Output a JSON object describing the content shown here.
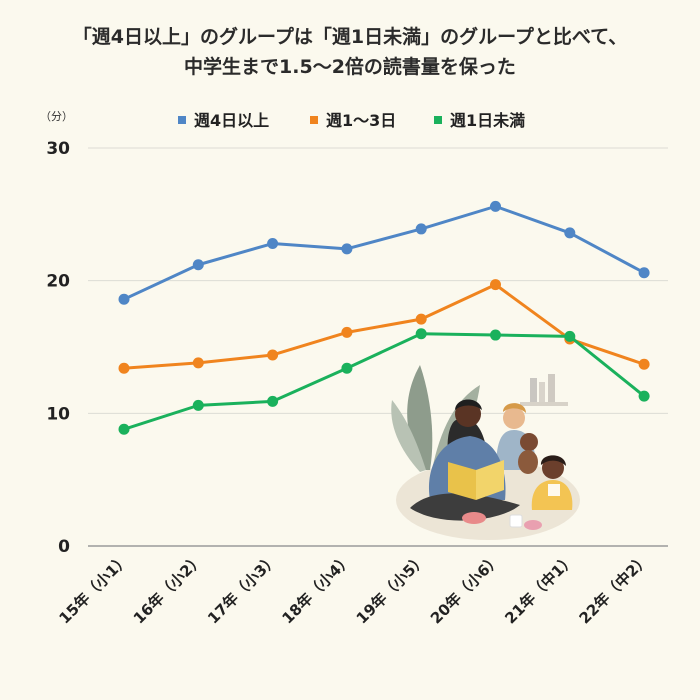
{
  "header": {
    "title_line1": "「週4日以上」のグループは「週1日未満」のグループと比べて、",
    "title_line2": "中学生まで1.5〜2倍の読書量を保った"
  },
  "chart_data": {
    "type": "line",
    "title": "「週4日以上」のグループは「週1日未満」のグループと比べて、中学生まで1.5〜2倍の読書量を保った",
    "unit_label": "（分）",
    "categories": [
      "15年（小1）",
      "16年（小2）",
      "17年（小3）",
      "18年（小4）",
      "19年（小5）",
      "20年（小6）",
      "21年（中1）",
      "22年（中2）"
    ],
    "yticks": [
      "0",
      "10",
      "20",
      "30"
    ],
    "ylim": [
      0,
      30
    ],
    "grid": true,
    "legend_position": "top-center",
    "series": [
      {
        "name": "週4日以上",
        "color": "#4f86c6",
        "values": [
          18.6,
          21.2,
          22.8,
          22.4,
          23.9,
          25.6,
          23.6,
          20.6
        ]
      },
      {
        "name": "週1〜3日",
        "color": "#f0841e",
        "values": [
          13.4,
          13.8,
          14.4,
          16.1,
          17.1,
          19.7,
          15.6,
          13.7
        ]
      },
      {
        "name": "週1日未満",
        "color": "#1ab15c",
        "values": [
          8.8,
          10.6,
          10.9,
          13.4,
          16.0,
          15.9,
          15.8,
          11.3
        ]
      }
    ]
  },
  "illustration": {
    "icon": "family-reading-book-illustration"
  }
}
